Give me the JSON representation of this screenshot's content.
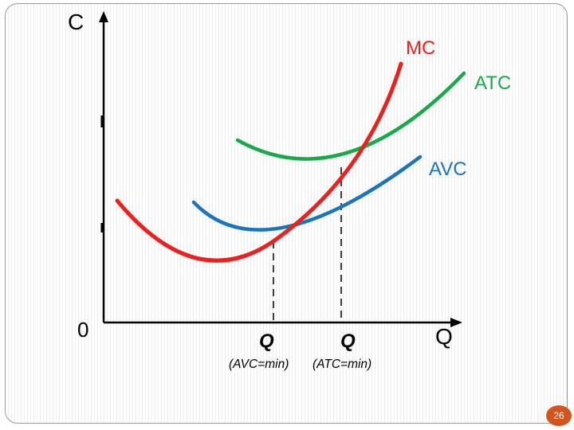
{
  "diagram": {
    "axes": {
      "y_label": "C",
      "x_label": "Q",
      "origin_label": "0"
    },
    "curves": [
      {
        "key": "mc",
        "label": "MC",
        "color": "#e8231f"
      },
      {
        "key": "atc",
        "label": "ATC",
        "color": "#19a94b"
      },
      {
        "key": "avc",
        "label": "AVC",
        "color": "#1b75bb"
      }
    ],
    "points": [
      {
        "key": "avc_min",
        "q_label": "Q",
        "note": "(AVC=min)"
      },
      {
        "key": "atc_min",
        "q_label": "Q",
        "note": "(ATC=min)"
      }
    ]
  },
  "slide": {
    "number": "26",
    "badge_color": "#d4541e"
  }
}
